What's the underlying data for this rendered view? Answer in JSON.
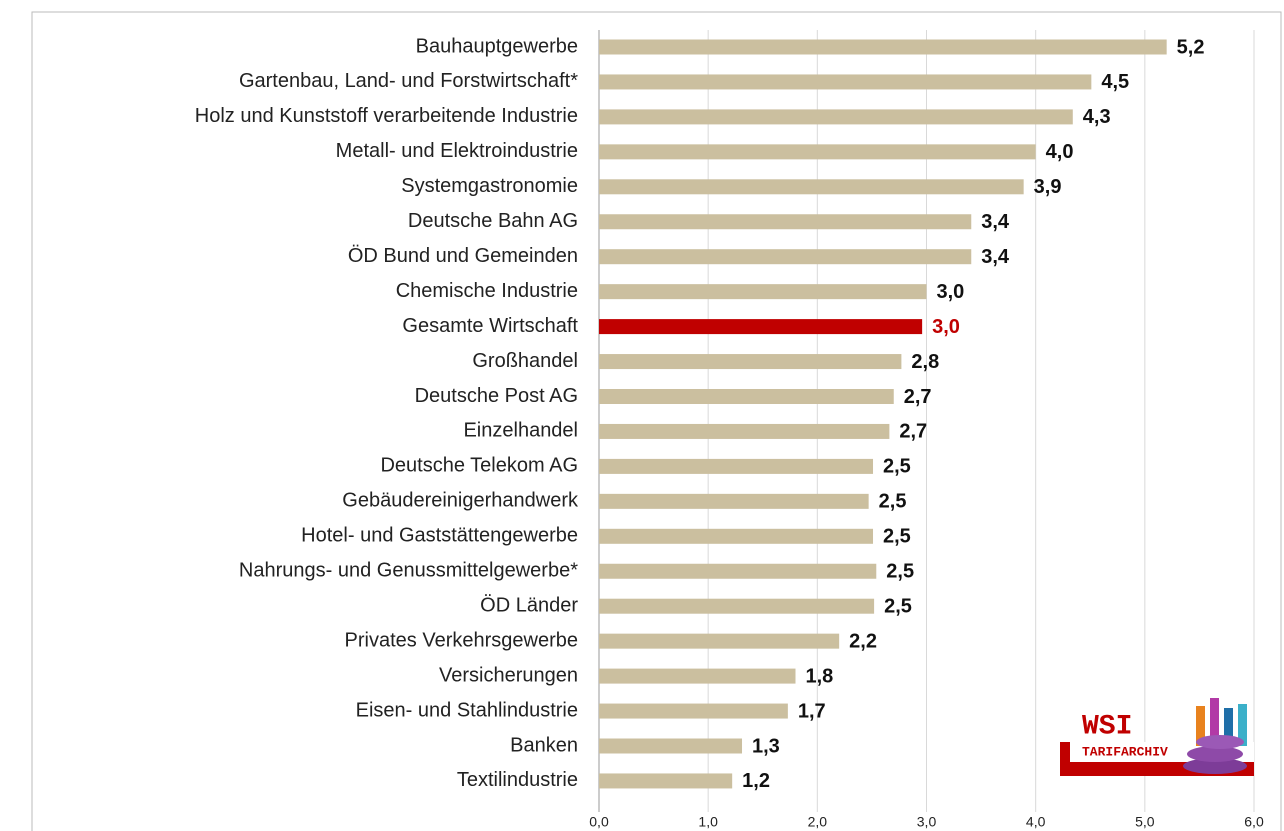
{
  "chart_data": {
    "type": "barh",
    "categories": [
      "Bauhauptgewerbe",
      "Gartenbau, Land- und Forstwirtschaft*",
      "Holz und Kunststoff verarbeitende Industrie",
      "Metall- und Elektroindustrie",
      "Systemgastronomie",
      "Deutsche Bahn AG",
      "ÖD Bund und Gemeinden",
      "Chemische Industrie",
      "Gesamte Wirtschaft",
      "Großhandel",
      "Deutsche Post AG",
      "Einzelhandel",
      "Deutsche Telekom AG",
      "Gebäudereinigerhandwerk",
      "Hotel- und Gaststättengewerbe",
      "Nahrungs- und Genussmittelgewerbe*",
      "ÖD Länder",
      "Privates Verkehrsgewerbe",
      "Versicherungen",
      "Eisen- und Stahlindustrie",
      "Banken",
      "Textilindustrie"
    ],
    "values": [
      5.2,
      4.51,
      4.34,
      4.0,
      3.89,
      3.41,
      3.41,
      3.0,
      2.96,
      2.77,
      2.7,
      2.66,
      2.51,
      2.47,
      2.51,
      2.54,
      2.52,
      2.2,
      1.8,
      1.73,
      1.31,
      1.22
    ],
    "value_labels": [
      "5,2",
      "4,5",
      "4,3",
      "4,0",
      "3,9",
      "3,4",
      "3,4",
      "3,0",
      "3,0",
      "2,8",
      "2,7",
      "2,7",
      "2,5",
      "2,5",
      "2,5",
      "2,5",
      "2,5",
      "2,2",
      "1,8",
      "1,7",
      "1,3",
      "1,2"
    ],
    "colors": [
      "#cbbf9f",
      "#cbbf9f",
      "#cbbf9f",
      "#cbbf9f",
      "#cbbf9f",
      "#cbbf9f",
      "#cbbf9f",
      "#cbbf9f",
      "#c00000",
      "#cbbf9f",
      "#cbbf9f",
      "#cbbf9f",
      "#cbbf9f",
      "#cbbf9f",
      "#cbbf9f",
      "#cbbf9f",
      "#cbbf9f",
      "#cbbf9f",
      "#cbbf9f",
      "#cbbf9f",
      "#cbbf9f",
      "#cbbf9f"
    ],
    "value_label_colors": [
      "#111",
      "#111",
      "#111",
      "#111",
      "#111",
      "#111",
      "#111",
      "#111",
      "#c00000",
      "#111",
      "#111",
      "#111",
      "#111",
      "#111",
      "#111",
      "#111",
      "#111",
      "#111",
      "#111",
      "#111",
      "#111",
      "#111"
    ],
    "xlim": [
      0,
      6
    ],
    "xticks": [
      {
        "value": 0,
        "label": "0,0"
      },
      {
        "value": 1,
        "label": "1,0"
      },
      {
        "value": 2,
        "label": "2,0"
      },
      {
        "value": 3,
        "label": "3,0"
      },
      {
        "value": 4,
        "label": "4,0"
      },
      {
        "value": 5,
        "label": "5,0"
      },
      {
        "value": 6,
        "label": "6,0"
      }
    ],
    "grid": true,
    "logo_text": [
      "WSI",
      "TARIFARCHIV"
    ]
  }
}
